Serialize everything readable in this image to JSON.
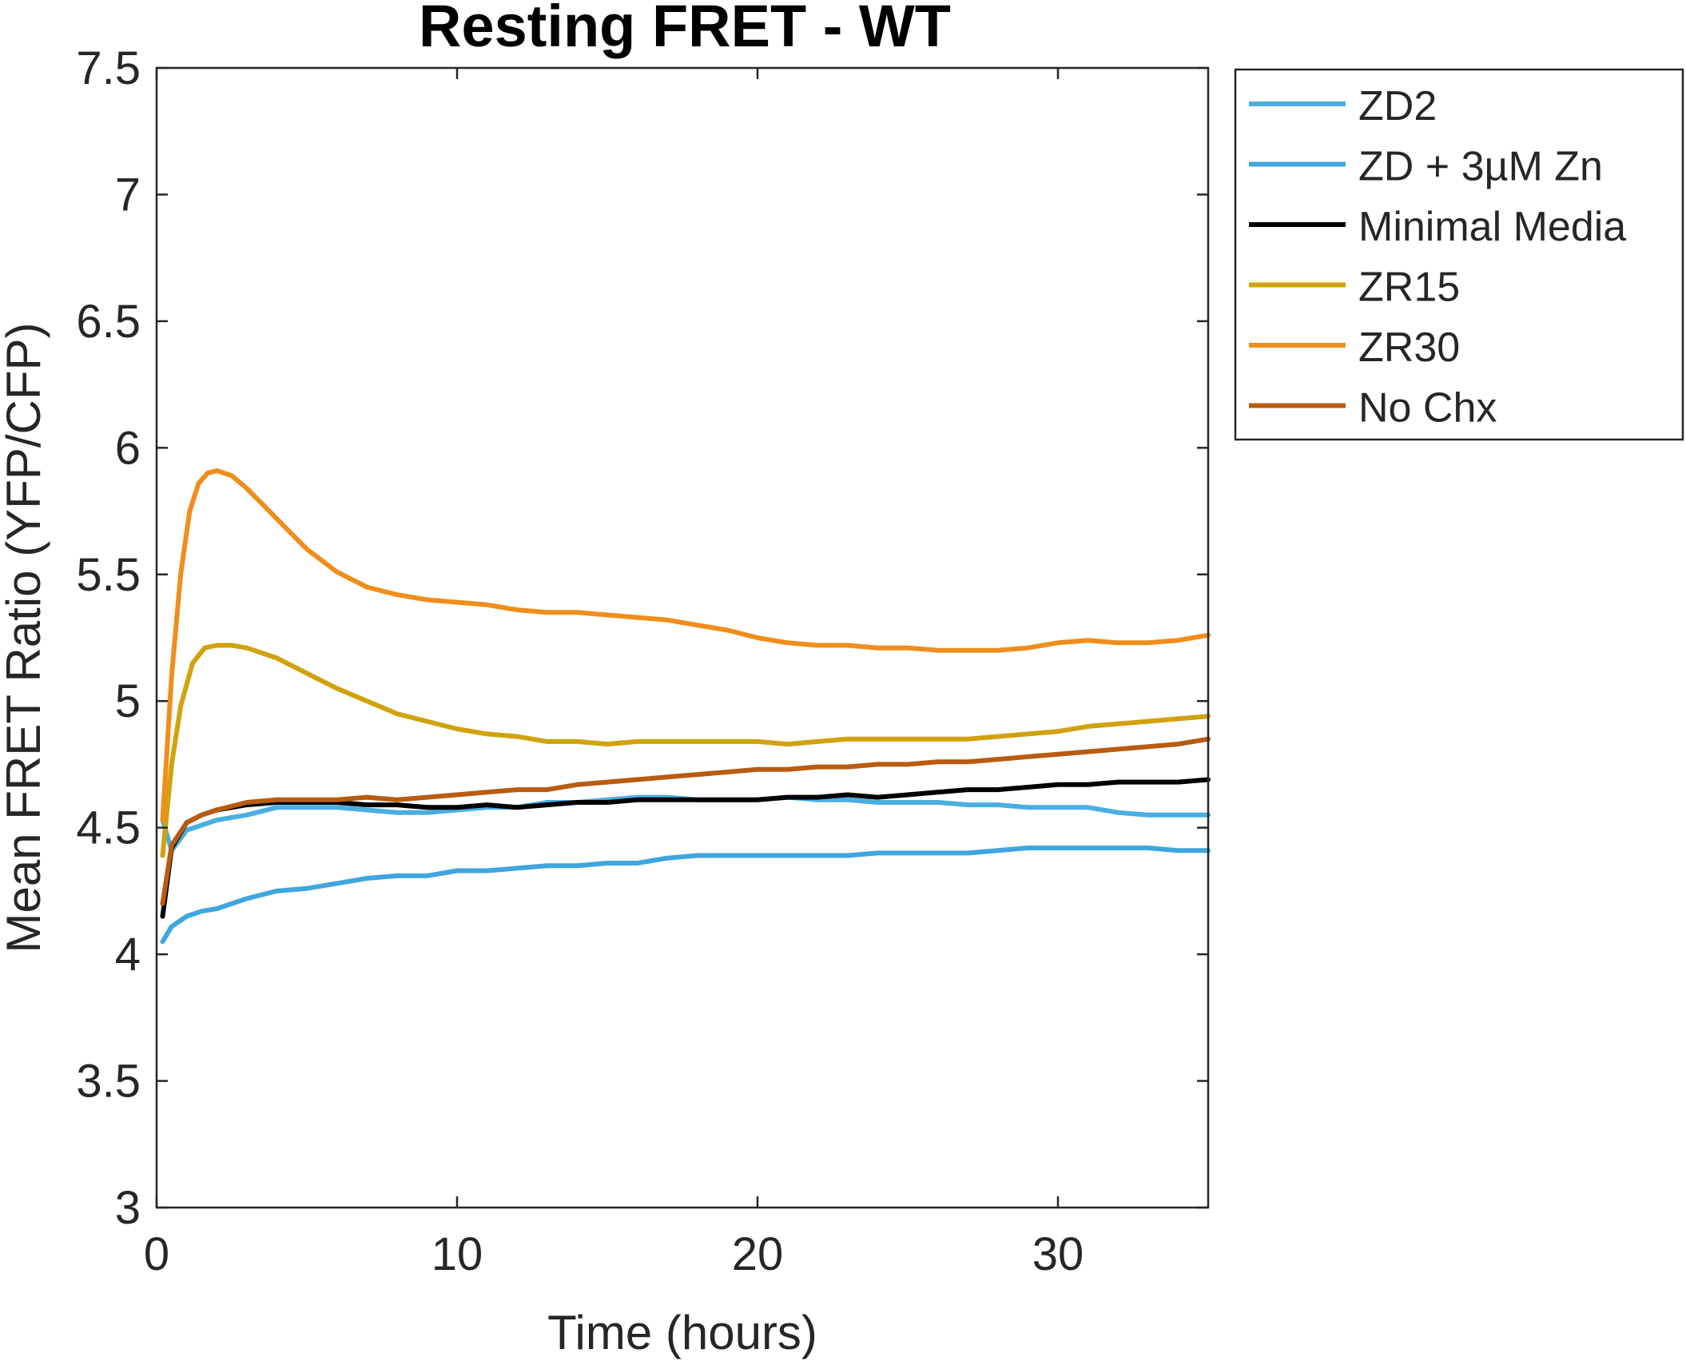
{
  "chart_data": {
    "type": "line",
    "title": "Resting FRET - WT",
    "xlabel": "Time (hours)",
    "ylabel": "Mean FRET Ratio (YFP/CFP)",
    "xlim": [
      0,
      35
    ],
    "ylim": [
      3,
      7.5
    ],
    "xticks": [
      0,
      10,
      20,
      30
    ],
    "xtick_labels": [
      "0",
      "10",
      "20",
      "30"
    ],
    "yticks": [
      3,
      3.5,
      4,
      4.5,
      5,
      5.5,
      6,
      6.5,
      7,
      7.5
    ],
    "ytick_labels": [
      "3",
      "3.5",
      "4",
      "4.5",
      "5",
      "5.5",
      "6",
      "6.5",
      "7",
      "7.5"
    ],
    "grid": false,
    "legend_position": "outside-top-right",
    "series": [
      {
        "name": "ZD2",
        "color": "#4aaee2",
        "x": [
          0.2,
          0.5,
          1,
          1.5,
          2,
          3,
          4,
          5,
          6,
          7,
          8,
          9,
          10,
          11,
          12,
          13,
          14,
          15,
          16,
          17,
          18,
          19,
          20,
          21,
          22,
          23,
          24,
          25,
          26,
          27,
          28,
          29,
          30,
          31,
          32,
          33,
          34,
          35
        ],
        "y": [
          4.53,
          4.41,
          4.49,
          4.51,
          4.53,
          4.55,
          4.58,
          4.58,
          4.58,
          4.57,
          4.56,
          4.56,
          4.57,
          4.58,
          4.58,
          4.6,
          4.6,
          4.61,
          4.62,
          4.62,
          4.61,
          4.61,
          4.61,
          4.62,
          4.61,
          4.61,
          4.6,
          4.6,
          4.6,
          4.59,
          4.59,
          4.58,
          4.58,
          4.58,
          4.56,
          4.55,
          4.55,
          4.55
        ]
      },
      {
        "name": "ZD + 3µM Zn",
        "color": "#3fa6de",
        "x": [
          0.2,
          0.5,
          1,
          1.5,
          2,
          3,
          4,
          5,
          6,
          7,
          8,
          9,
          10,
          11,
          12,
          13,
          14,
          15,
          16,
          17,
          18,
          19,
          20,
          21,
          22,
          23,
          24,
          25,
          26,
          27,
          28,
          29,
          30,
          31,
          32,
          33,
          34,
          35
        ],
        "y": [
          4.05,
          4.11,
          4.15,
          4.17,
          4.18,
          4.22,
          4.25,
          4.26,
          4.28,
          4.3,
          4.31,
          4.31,
          4.33,
          4.33,
          4.34,
          4.35,
          4.35,
          4.36,
          4.36,
          4.38,
          4.39,
          4.39,
          4.39,
          4.39,
          4.39,
          4.39,
          4.4,
          4.4,
          4.4,
          4.4,
          4.41,
          4.42,
          4.42,
          4.42,
          4.42,
          4.42,
          4.41,
          4.41
        ]
      },
      {
        "name": "Minimal Media",
        "color": "#000000",
        "x": [
          0.2,
          0.5,
          1,
          1.5,
          2,
          3,
          4,
          5,
          6,
          7,
          8,
          9,
          10,
          11,
          12,
          13,
          14,
          15,
          16,
          17,
          18,
          19,
          20,
          21,
          22,
          23,
          24,
          25,
          26,
          27,
          28,
          29,
          30,
          31,
          32,
          33,
          34,
          35
        ],
        "y": [
          4.15,
          4.42,
          4.52,
          4.55,
          4.57,
          4.59,
          4.6,
          4.6,
          4.6,
          4.59,
          4.59,
          4.58,
          4.58,
          4.59,
          4.58,
          4.59,
          4.6,
          4.6,
          4.61,
          4.61,
          4.61,
          4.61,
          4.61,
          4.62,
          4.62,
          4.63,
          4.62,
          4.63,
          4.64,
          4.65,
          4.65,
          4.66,
          4.67,
          4.67,
          4.68,
          4.68,
          4.68,
          4.69
        ]
      },
      {
        "name": "ZR15",
        "color": "#d0a20e",
        "x": [
          0.2,
          0.5,
          0.8,
          1.2,
          1.6,
          2,
          2.5,
          3,
          4,
          5,
          6,
          7,
          8,
          9,
          10,
          11,
          12,
          13,
          14,
          15,
          16,
          17,
          18,
          19,
          20,
          21,
          22,
          23,
          24,
          25,
          26,
          27,
          28,
          29,
          30,
          31,
          32,
          33,
          34,
          35
        ],
        "y": [
          4.39,
          4.75,
          4.98,
          5.15,
          5.21,
          5.22,
          5.22,
          5.21,
          5.17,
          5.11,
          5.05,
          5,
          4.95,
          4.92,
          4.89,
          4.87,
          4.86,
          4.84,
          4.84,
          4.83,
          4.84,
          4.84,
          4.84,
          4.84,
          4.84,
          4.83,
          4.84,
          4.85,
          4.85,
          4.85,
          4.85,
          4.85,
          4.86,
          4.87,
          4.88,
          4.9,
          4.91,
          4.92,
          4.93,
          4.94
        ]
      },
      {
        "name": "ZR30",
        "color": "#ef8e1c",
        "x": [
          0.2,
          0.5,
          0.8,
          1.1,
          1.4,
          1.7,
          2,
          2.5,
          3,
          4,
          5,
          6,
          7,
          8,
          9,
          10,
          11,
          12,
          13,
          14,
          15,
          16,
          17,
          18,
          19,
          20,
          21,
          22,
          23,
          24,
          25,
          26,
          27,
          28,
          29,
          30,
          31,
          32,
          33,
          34,
          35
        ],
        "y": [
          4.53,
          5.1,
          5.5,
          5.75,
          5.86,
          5.9,
          5.91,
          5.89,
          5.84,
          5.72,
          5.6,
          5.51,
          5.45,
          5.42,
          5.4,
          5.39,
          5.38,
          5.36,
          5.35,
          5.35,
          5.34,
          5.33,
          5.32,
          5.3,
          5.28,
          5.25,
          5.23,
          5.22,
          5.22,
          5.21,
          5.21,
          5.2,
          5.2,
          5.2,
          5.21,
          5.23,
          5.24,
          5.23,
          5.23,
          5.24,
          5.26
        ]
      },
      {
        "name": "No Chx",
        "color": "#b75c12",
        "x": [
          0.2,
          0.5,
          1,
          1.5,
          2,
          3,
          4,
          5,
          6,
          7,
          8,
          9,
          10,
          11,
          12,
          13,
          14,
          15,
          16,
          17,
          18,
          19,
          20,
          21,
          22,
          23,
          24,
          25,
          26,
          27,
          28,
          29,
          30,
          31,
          32,
          33,
          34,
          35
        ],
        "y": [
          4.2,
          4.43,
          4.52,
          4.55,
          4.57,
          4.6,
          4.61,
          4.61,
          4.61,
          4.62,
          4.61,
          4.62,
          4.63,
          4.64,
          4.65,
          4.65,
          4.67,
          4.68,
          4.69,
          4.7,
          4.71,
          4.72,
          4.73,
          4.73,
          4.74,
          4.74,
          4.75,
          4.75,
          4.76,
          4.76,
          4.77,
          4.78,
          4.79,
          4.8,
          4.81,
          4.82,
          4.83,
          4.85
        ]
      }
    ]
  }
}
